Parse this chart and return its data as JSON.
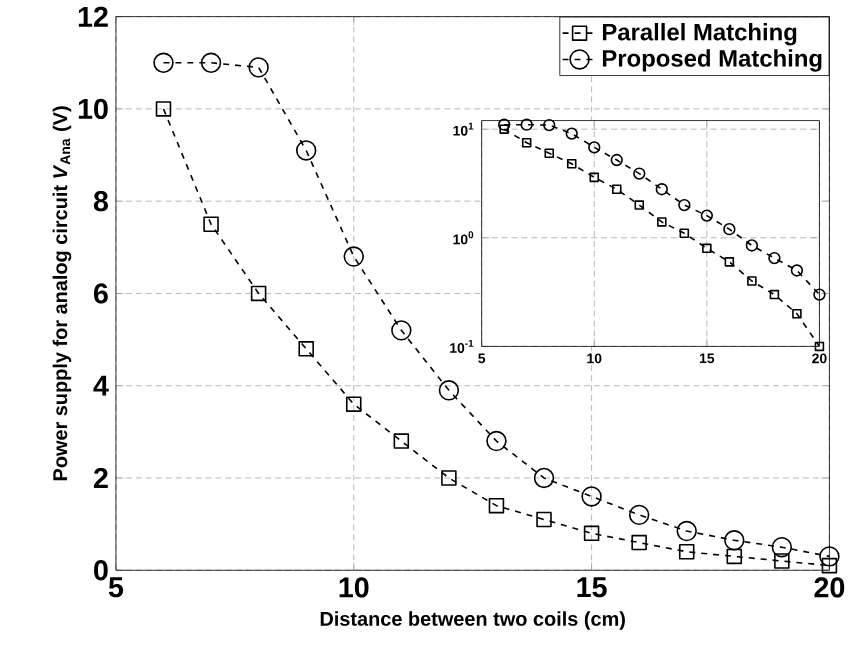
{
  "chart_data": [
    {
      "type": "line",
      "xlabel": "Distance between two coils (cm)",
      "ylabel": "Power supply for analog circuit *V*$_{Ana}$ (V)",
      "x": [
        6,
        7,
        8,
        9,
        10,
        11,
        12,
        13,
        14,
        15,
        16,
        17,
        18,
        19,
        20
      ],
      "series": [
        {
          "name": "Parallel Matching",
          "color": "#000000",
          "marker": "square",
          "values": [
            10,
            7.5,
            6,
            4.8,
            3.6,
            2.8,
            2.0,
            1.4,
            1.1,
            0.8,
            0.6,
            0.4,
            0.3,
            0.2,
            0.1
          ]
        },
        {
          "name": "Proposed Matching",
          "color": "#000000",
          "marker": "circle",
          "values": [
            11,
            11,
            10.9,
            9.1,
            6.8,
            5.2,
            3.9,
            2.8,
            2.0,
            1.6,
            1.2,
            0.85,
            0.65,
            0.5,
            0.3
          ]
        }
      ],
      "xlim": [
        5,
        20
      ],
      "xticks": [
        5,
        10,
        15,
        20
      ],
      "ylim": [
        0,
        12
      ],
      "yticks": [
        0,
        2,
        4,
        6,
        8,
        10,
        12
      ],
      "grid": true,
      "legend": "top right",
      "line_style": "dashed"
    },
    {
      "type": "line",
      "log": "y",
      "x": [
        6,
        7,
        8,
        9,
        10,
        11,
        12,
        13,
        14,
        15,
        16,
        17,
        18,
        19,
        20
      ],
      "series": [
        {
          "color": "#000000",
          "marker": "square",
          "values": [
            10,
            7.5,
            6,
            4.8,
            3.6,
            2.8,
            2.0,
            1.4,
            1.1,
            0.8,
            0.6,
            0.4,
            0.3,
            0.2,
            0.1
          ]
        },
        {
          "color": "#000000",
          "marker": "circle",
          "values": [
            11,
            11,
            10.9,
            9.1,
            6.8,
            5.2,
            3.9,
            2.8,
            2.0,
            1.6,
            1.2,
            0.85,
            0.65,
            0.5,
            0.3
          ]
        }
      ],
      "xlim": [
        5,
        20
      ],
      "xticks": [
        5,
        10,
        15,
        20
      ],
      "ylim": [
        0.1,
        12
      ],
      "yticks": [
        {
          "value": 0.1,
          "label": "10$^{-1}$"
        },
        {
          "value": 1,
          "label": "10$^{0}$"
        },
        {
          "value": 10,
          "label": "10$^{1}$"
        }
      ],
      "grid": true,
      "line_style": "dashed"
    }
  ]
}
